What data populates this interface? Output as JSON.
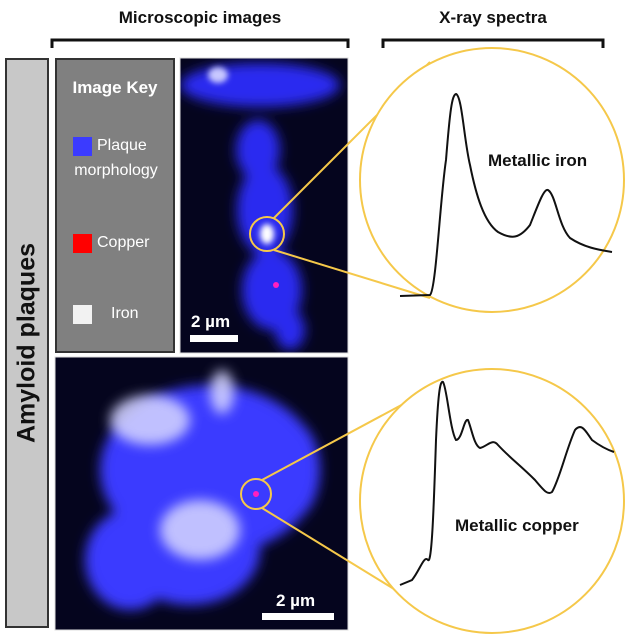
{
  "headers": {
    "microscopic": "Microscopic images",
    "xray": "X-ray spectra"
  },
  "side_label": "Amyloid plaques",
  "image_key": {
    "title": "Image Key",
    "items": [
      {
        "label_line1": "Plaque",
        "label_line2": "morphology",
        "color": "#3b3bff"
      },
      {
        "label_line1": "Copper",
        "label_line2": "",
        "color": "#ff0000"
      },
      {
        "label_line1": "Iron",
        "label_line2": "",
        "color": "#f2f2f2"
      }
    ]
  },
  "scale_bars": {
    "top": "2 µm",
    "bottom": "2 µm"
  },
  "spectra": {
    "top_label": "Metallic iron",
    "bottom_label": "Metallic copper"
  },
  "colors": {
    "accent": "#f5c84a",
    "plaque": "#3b3bff",
    "background": "#05051e"
  }
}
